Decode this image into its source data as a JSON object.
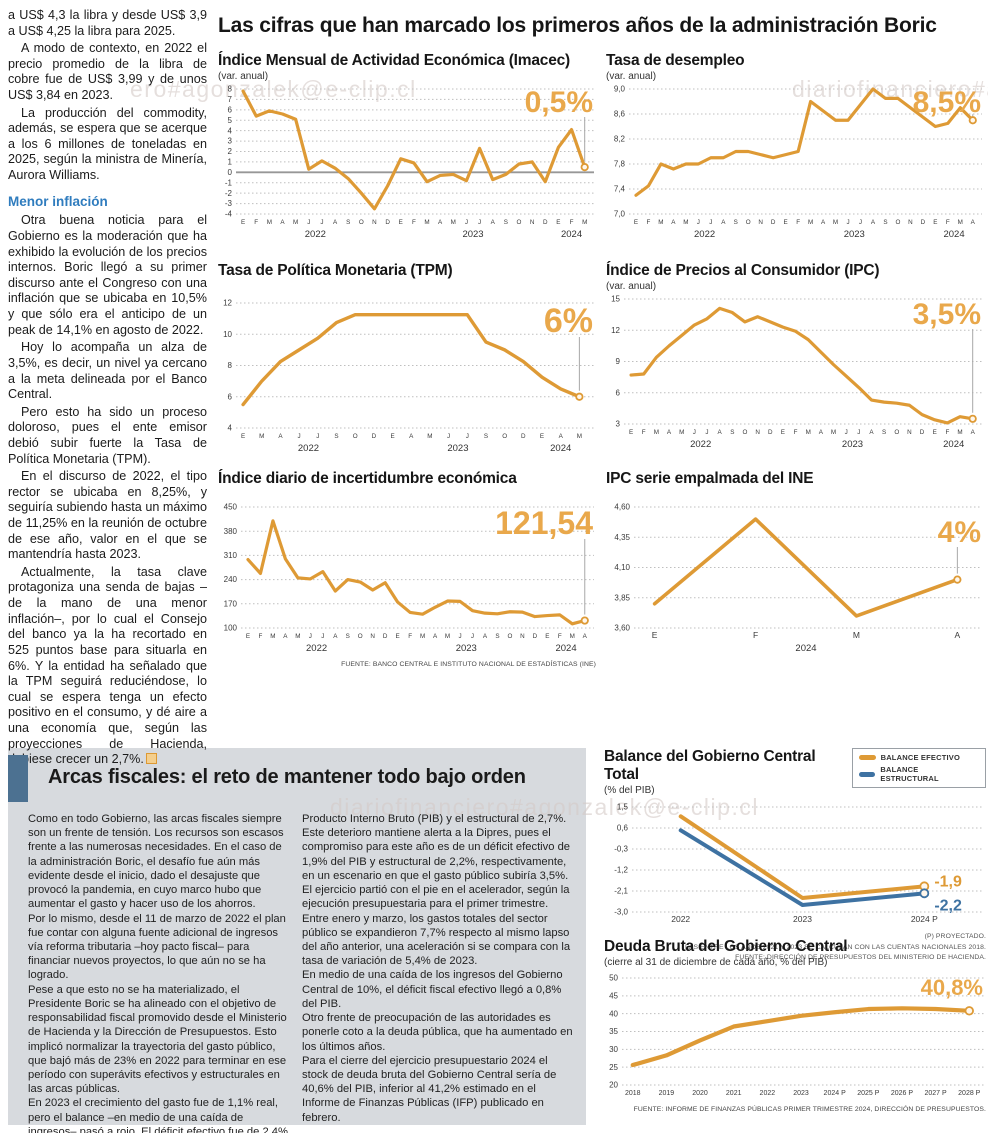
{
  "watermarks": [
    {
      "text": "ero#agonzalek@e-clip.cl"
    },
    {
      "text": "diariofinanciero#agonzalek"
    },
    {
      "text": "diariofinanciero#agonzalek@e-clip.cl"
    }
  ],
  "left_column": {
    "paragraphs": [
      "a US$ 4,3 la libra y desde US$ 3,9 a US$ 4,25 la libra para 2025.",
      "A modo de contexto, en 2022 el precio promedio de la libra de cobre fue de US$ 3,99 y de unos US$ 3,84 en 2023.",
      "La producción del commodity, además, se espera que se acerque a los 6 millones de toneladas en 2025, según la ministra de Minería, Aurora Williams."
    ],
    "subhead": "Menor inflación",
    "paragraphs2": [
      "Otra buena noticia para el Gobierno es la moderación que ha exhibido la evolución de los precios internos. Boric llegó a su primer discurso ante el Congreso con una inflación que se ubicaba en 10,5% y que sólo era el anticipo de un peak de 14,1% en agosto de 2022.",
      "Hoy lo acompaña un alza de 3,5%, es decir, un nivel ya cercano a la meta delineada por el Banco Central.",
      "Pero esto ha sido un proceso doloroso, pues el ente emisor debió subir fuerte la Tasa de Política Monetaria (TPM).",
      "En el discurso de 2022, el tipo rector se ubicaba en 8,25%, y seguiría subiendo hasta un máximo de 11,25% en la reunión de octubre de ese año, valor en el que se mantendría hasta 2023.",
      "Actualmente, la tasa clave protagoniza una senda de bajas –de la mano de una menor inflación–, por lo cual el Consejo del banco ya la ha recortado en 525 puntos base para situarla en 6%. Y la entidad ha señalado que la TPM seguirá reduciéndose, lo cual se espera tenga un efecto positivo en el consumo, y dé aire a una economía que, según las proyecciones de Hacienda, debiese crecer un 2,7%."
    ]
  },
  "top_title": "Las cifras que han marcado los primeros años de la administración Boric",
  "section2": {
    "title": "Arcas fiscales: el reto de mantener todo bajo orden",
    "col1": [
      "Como en todo Gobierno, las arcas fiscales siempre son un frente de tensión. Los recursos son escasos frente a las numerosas necesidades. En el caso de la administración Boric, el desafío fue aún más evidente desde el inicio, dado el desajuste que provocó la pandemia, en cuyo marco hubo que aumentar el gasto y hacer uso de los ahorros.",
      "Por lo mismo, desde el 11 de marzo de 2022 el plan fue contar con alguna fuente adicional de ingresos vía reforma tributaria –hoy pacto fiscal– para financiar nuevos proyectos, lo que aún no se ha logrado.",
      "Pese a que esto no se ha materializado, el Presidente Boric se ha alineado con el objetivo de responsabilidad fiscal promovido desde el Ministerio de Hacienda y la Dirección de Presupuestos. Esto implicó normalizar la trayectoria del gasto público, que bajó más de 23% en 2022 para terminar en ese período con superávits efectivos y estructurales en las arcas públicas.",
      "En 2023 el crecimiento del gasto fue de 1,1% real, pero el balance –en medio de una caída de ingresos–  pasó a rojo. El déficit efectivo fue de 2,4% del"
    ],
    "col2": [
      "Producto Interno Bruto (PIB) y el estructural de 2,7%. Este deterioro mantiene alerta a la Dipres, pues el compromiso para este año es de un déficit efectivo de 1,9% del PIB y estructural de 2,2%, respectivamente, en un escenario en que el gasto público subiría 3,5%.",
      "El ejercicio partió con el pie en el acelerador, según la ejecución presupuestaria para el primer trimestre. Entre enero y marzo, los gastos totales del sector público se expandieron 7,7% respecto al mismo lapso del año anterior, una aceleración si se compara con la tasa de variación de 5,4% de 2023.",
      "En medio de una caída de los ingresos del Gobierno Central de 10%, el déficit fiscal efectivo llegó a 0,8% del PIB.",
      "Otro frente de preocupación de las autoridades es ponerle coto a la deuda pública, que ha aumentado en los últimos años.",
      "Para el cierre del ejercicio presupuestario 2024 el stock de deuda bruta del Gobierno Central sería de 40,6% del PIB, inferior al 41,2% estimado en el Informe de Finanzas Públicas (IFP) publicado en febrero."
    ]
  },
  "colors": {
    "orange_line": "#de9a35",
    "orange_label": "#e9a84b",
    "blue_line": "#3e72a2",
    "subhead_blue": "#2f7cbe",
    "section_bar_blue": "#4c7191",
    "gray_box": "#d7dade"
  },
  "chart_data": [
    {
      "name": "imacec",
      "type": "line",
      "title": "Índice Mensual de Actividad Económica (Imacec)",
      "subtitle": "(var. anual)",
      "highlight": "0,5%",
      "highlight_size": 30,
      "highlight_y": 30,
      "connector": true,
      "ylim": [
        -4,
        8
      ],
      "yticks": [
        8,
        7,
        6,
        5,
        4,
        3,
        2,
        1,
        0,
        -1,
        -2,
        -3,
        -4
      ],
      "ytick_labels": [
        "8",
        "7",
        "6",
        "5",
        "4",
        "3",
        "2",
        "1",
        "0",
        "-1",
        "-2",
        "-3",
        "-4"
      ],
      "zero_line": true,
      "x0": 0.02,
      "x1": 0.985,
      "lw": 3.2,
      "x_labels": [
        "E",
        "F",
        "M",
        "A",
        "M",
        "J",
        "J",
        "A",
        "S",
        "O",
        "N",
        "D",
        "E",
        "F",
        "M",
        "A",
        "M",
        "J",
        "J",
        "A",
        "S",
        "O",
        "N",
        "D",
        "E",
        "F",
        "M"
      ],
      "year_labels": [
        {
          "label": "2022",
          "from": 0,
          "to": 11
        },
        {
          "label": "2023",
          "from": 12,
          "to": 23
        },
        {
          "label": "2024",
          "from": 24,
          "to": 26
        }
      ],
      "series": [
        {
          "name": "Imacec",
          "color": "#de9a35",
          "values": [
            7.8,
            5.4,
            5.9,
            5.6,
            5.1,
            0.3,
            1.1,
            0.4,
            -0.6,
            -2.0,
            -3.5,
            -1.3,
            1.3,
            0.9,
            -0.9,
            -0.3,
            -0.2,
            -0.8,
            2.3,
            -0.7,
            -0.2,
            0.8,
            1.0,
            -0.9,
            2.4,
            4.1,
            0.5
          ]
        }
      ]
    },
    {
      "name": "desempleo",
      "type": "line",
      "title": "Tasa de desempleo",
      "subtitle": "(var. anual)",
      "highlight": "8,5%",
      "highlight_size": 30,
      "highlight_y": 30,
      "connector": true,
      "ylim": [
        7.0,
        9.0
      ],
      "yticks": [
        9.0,
        8.6,
        8.2,
        7.8,
        7.4,
        7.0
      ],
      "ytick_labels": [
        "9,0",
        "8,6",
        "8,2",
        "7,8",
        "7,4",
        "7,0"
      ],
      "x0": 0.02,
      "x1": 0.985,
      "lw": 3.2,
      "x_labels": [
        "E",
        "F",
        "M",
        "A",
        "M",
        "J",
        "J",
        "A",
        "S",
        "O",
        "N",
        "D",
        "E",
        "F",
        "M",
        "A",
        "M",
        "J",
        "J",
        "A",
        "S",
        "O",
        "N",
        "D",
        "E",
        "F",
        "M",
        "A"
      ],
      "year_labels": [
        {
          "label": "2022",
          "from": 0,
          "to": 11
        },
        {
          "label": "2023",
          "from": 12,
          "to": 23
        },
        {
          "label": "2024",
          "from": 24,
          "to": 27
        }
      ],
      "series": [
        {
          "name": "Desempleo",
          "color": "#de9a35",
          "values": [
            7.3,
            7.45,
            7.8,
            7.72,
            7.8,
            7.8,
            7.9,
            7.9,
            8.0,
            8.0,
            7.95,
            7.9,
            7.95,
            8.0,
            8.8,
            8.65,
            8.5,
            8.5,
            8.75,
            9.0,
            8.85,
            8.85,
            8.7,
            8.55,
            8.4,
            8.45,
            8.7,
            8.5
          ]
        }
      ]
    },
    {
      "name": "tpm",
      "type": "line",
      "title": "Tasa de Política Monetaria (TPM)",
      "subtitle": "",
      "highlight": "6%",
      "highlight_size": 34,
      "highlight_y": 36,
      "connector": true,
      "ylim": [
        4,
        12
      ],
      "yticks": [
        12,
        10,
        8,
        6,
        4
      ],
      "ytick_labels": [
        "12",
        "10",
        "8",
        "6",
        "4"
      ],
      "x0": 0.02,
      "x1": 0.97,
      "lw": 3.4,
      "x_labels": [
        "E",
        "M",
        "A",
        "J",
        "J",
        "S",
        "O",
        "D",
        "E",
        "A",
        "M",
        "J",
        "J",
        "S",
        "O",
        "D",
        "E",
        "A",
        "M"
      ],
      "year_labels": [
        {
          "label": "2022",
          "from": 0,
          "to": 7
        },
        {
          "label": "2023",
          "from": 8,
          "to": 15
        },
        {
          "label": "2024",
          "from": 16,
          "to": 18
        }
      ],
      "series": [
        {
          "name": "TPM",
          "color": "#de9a35",
          "values": [
            5.5,
            7.0,
            8.25,
            9.0,
            9.75,
            10.75,
            11.25,
            11.25,
            11.25,
            11.25,
            11.25,
            11.25,
            11.25,
            9.5,
            9.0,
            8.25,
            7.25,
            6.5,
            6.0
          ]
        }
      ]
    },
    {
      "name": "ipc",
      "type": "line",
      "title": "Índice de Precios al Consumidor (IPC)",
      "subtitle": "(var. anual)",
      "highlight": "3,5%",
      "highlight_size": 30,
      "highlight_y": 32,
      "connector": true,
      "ylim": [
        3,
        15
      ],
      "yticks": [
        15,
        12,
        9,
        6,
        3
      ],
      "ytick_labels": [
        "15",
        "12",
        "9",
        "6",
        "3"
      ],
      "x0": 0.02,
      "x1": 0.985,
      "lw": 3.2,
      "x_labels": [
        "E",
        "F",
        "M",
        "A",
        "M",
        "J",
        "J",
        "A",
        "S",
        "O",
        "N",
        "D",
        "E",
        "F",
        "M",
        "A",
        "M",
        "J",
        "J",
        "A",
        "S",
        "O",
        "N",
        "D",
        "E",
        "F",
        "M",
        "A"
      ],
      "year_labels": [
        {
          "label": "2022",
          "from": 0,
          "to": 11
        },
        {
          "label": "2023",
          "from": 12,
          "to": 23
        },
        {
          "label": "2024",
          "from": 24,
          "to": 27
        }
      ],
      "series": [
        {
          "name": "IPC",
          "color": "#de9a35",
          "values": [
            7.7,
            7.8,
            9.4,
            10.5,
            11.5,
            12.5,
            13.1,
            14.1,
            13.7,
            12.8,
            13.3,
            12.8,
            12.3,
            11.9,
            11.1,
            9.9,
            8.7,
            7.6,
            6.5,
            5.3,
            5.1,
            5.0,
            4.8,
            3.9,
            3.4,
            3.1,
            3.7,
            3.5
          ]
        }
      ]
    },
    {
      "name": "incertidumbre",
      "type": "line",
      "title": "Índice diario de incertidumbre económica",
      "subtitle": "",
      "highlight": "121,54",
      "highlight_size": 32,
      "highlight_y": 34,
      "connector": true,
      "ylim": [
        100,
        450
      ],
      "yticks": [
        450,
        380,
        310,
        240,
        170,
        100
      ],
      "ytick_labels": [
        "450",
        "380",
        "310",
        "240",
        "170",
        "100"
      ],
      "x0": 0.02,
      "x1": 0.985,
      "lw": 3.2,
      "x_labels": [
        "E",
        "F",
        "M",
        "A",
        "M",
        "J",
        "J",
        "A",
        "S",
        "O",
        "N",
        "D",
        "E",
        "F",
        "M",
        "A",
        "M",
        "J",
        "J",
        "A",
        "S",
        "O",
        "N",
        "D",
        "E",
        "F",
        "M",
        "A"
      ],
      "year_labels": [
        {
          "label": "2022",
          "from": 0,
          "to": 11
        },
        {
          "label": "2023",
          "from": 12,
          "to": 23
        },
        {
          "label": "2024",
          "from": 24,
          "to": 27
        }
      ],
      "series": [
        {
          "name": "Incertidumbre",
          "color": "#de9a35",
          "values": [
            298,
            258,
            410,
            300,
            245,
            242,
            263,
            207,
            240,
            233,
            210,
            231,
            175,
            145,
            140,
            160,
            178,
            177,
            150,
            143,
            141,
            147,
            146,
            133,
            136,
            138,
            112,
            121.54
          ]
        }
      ],
      "source": "FUENTE: BANCO CENTRAL E INSTITUTO NACIONAL DE ESTADÍSTICAS (INE)"
    },
    {
      "name": "ipc-empalmada",
      "type": "line",
      "title": "IPC serie empalmada del INE",
      "subtitle": "",
      "highlight": "4%",
      "highlight_size": 30,
      "highlight_y": 42,
      "connector": true,
      "ylim": [
        3.6,
        4.6
      ],
      "yticks": [
        4.6,
        4.35,
        4.1,
        3.85,
        3.6
      ],
      "ytick_labels": [
        "4,60",
        "4,35",
        "4,10",
        "3,85",
        "3,60"
      ],
      "x0": 0.06,
      "x1": 0.94,
      "lw": 3.6,
      "x_labels": [
        "E",
        "F",
        "M",
        "A"
      ],
      "year_labels": [
        {
          "label": "2024",
          "from": 0,
          "to": 3
        }
      ],
      "series": [
        {
          "name": "IPC empalmada",
          "color": "#de9a35",
          "values": [
            3.8,
            4.5,
            3.7,
            4.0
          ]
        }
      ]
    },
    {
      "name": "balance",
      "type": "line",
      "title": "Balance del Gobierno Central Total",
      "subtitle": "(% del PIB)",
      "ylim": [
        -3.0,
        1.5
      ],
      "yticks": [
        1.5,
        0.6,
        -0.3,
        -1.2,
        -2.1,
        -3.0
      ],
      "ytick_labels": [
        "1,5",
        "0,6",
        "-0,3",
        "-1,2",
        "-2,1",
        "-3,0"
      ],
      "x0": 0.14,
      "x1": 0.84,
      "lw": 4,
      "marker_r": 4,
      "x_labels": [
        "2022",
        "2023",
        "2024 P"
      ],
      "series": [
        {
          "name": "BALANCE EFECTIVO",
          "color": "#de9a35",
          "values": [
            1.1,
            -2.4,
            -1.9
          ],
          "end_label": "-1,9",
          "end_dy": 0
        },
        {
          "name": "BALANCE ESTRUCTURAL",
          "color": "#3e72a2",
          "values": [
            0.5,
            -2.7,
            -2.2
          ],
          "end_label": "-2,2",
          "end_dy": 17
        }
      ],
      "notes": [
        "(P) PROYECTADO.",
        "LAS ENTRE LOS AÑOS 2021 Y 2023 SE CALCULAN  CON LAS CUENTAS NACIONALES 2018.",
        "FUENTE: DIRECCIÓN DE PRESUPUESTOS DEL MINISTERIO DE HACIENDA."
      ]
    },
    {
      "name": "deuda-bruta",
      "type": "line",
      "title": "Deuda Bruta del Gobierno Central",
      "subtitle": "(cierre al 31 de diciembre de cada año, % del PIB)",
      "highlight": "40,8%",
      "highlight_size": 22,
      "highlight_y": 24,
      "connector": false,
      "ylim": [
        20,
        50
      ],
      "yticks": [
        50,
        45,
        40,
        35,
        30,
        25,
        20
      ],
      "ytick_labels": [
        "50",
        "45",
        "40",
        "35",
        "30",
        "25",
        "20"
      ],
      "x0": 0.03,
      "x1": 0.97,
      "lw": 4.2,
      "marker_r": 3.8,
      "x_labels": [
        "2018",
        "2019",
        "2020",
        "2021",
        "2022",
        "2023",
        "2024 P",
        "2025 P",
        "2026 P",
        "2027 P",
        "2028 P"
      ],
      "series": [
        {
          "name": "Deuda bruta",
          "color": "#de9a35",
          "values": [
            25.6,
            28.3,
            32.5,
            36.4,
            37.9,
            39.4,
            40.4,
            41.3,
            41.5,
            41.3,
            40.8
          ]
        }
      ],
      "source": "FUENTE: INFORME DE FINANZAS PÚBLICAS PRIMER TRIMESTRE 2024, DIRECCIÓN DE PRESUPUESTOS."
    }
  ]
}
